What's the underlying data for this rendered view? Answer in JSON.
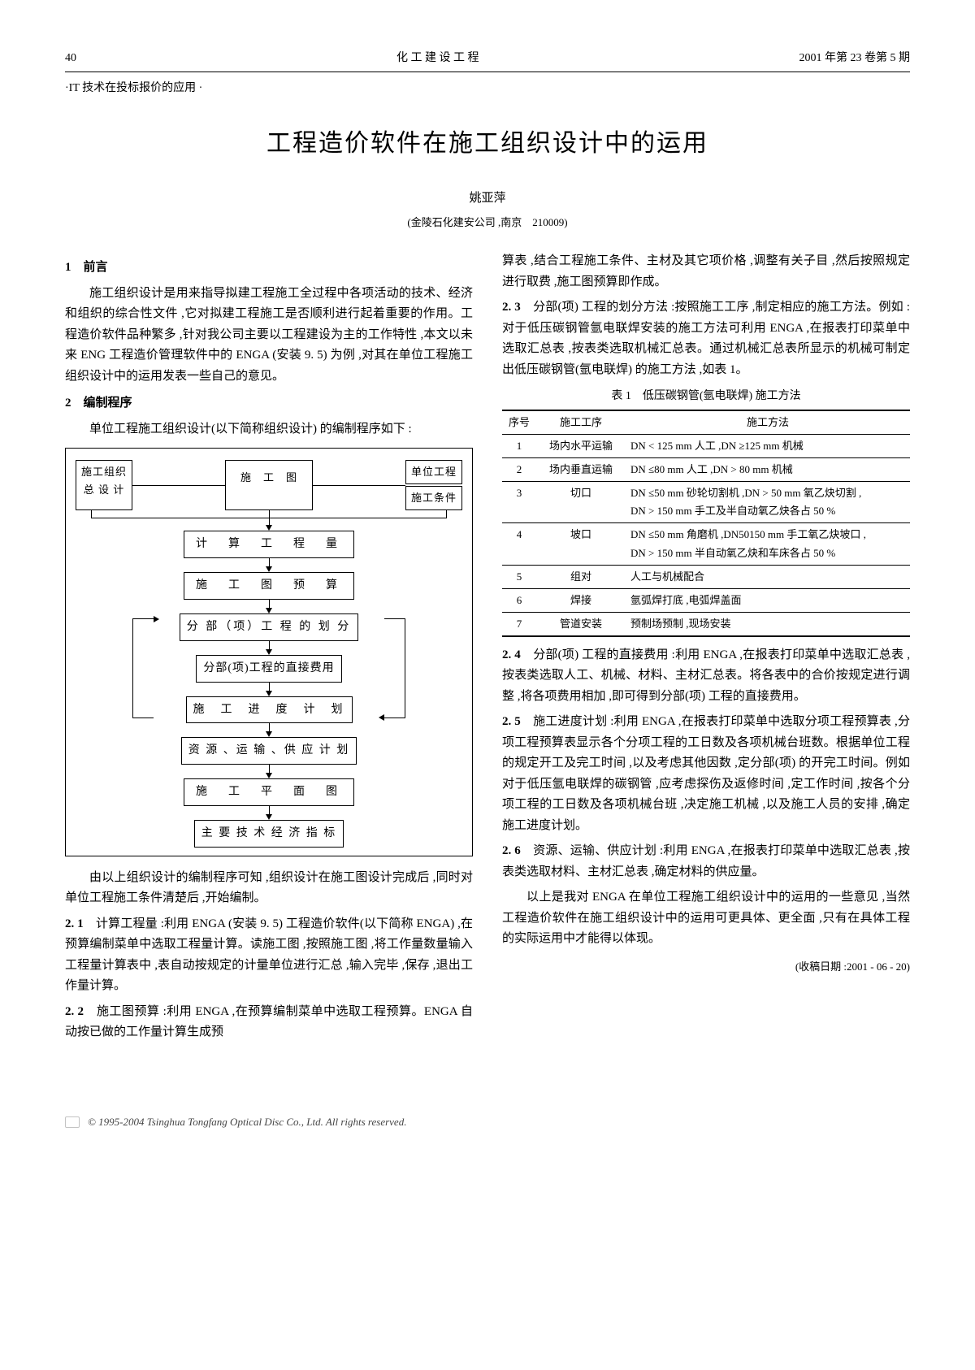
{
  "header": {
    "page_num": "40",
    "journal": "化 工 建 设 工 程",
    "issue": "2001 年第 23 卷第 5 期"
  },
  "section_tag": "·IT 技术在投标报价的应用 ·",
  "title": "工程造价软件在施工组织设计中的运用",
  "author": "姚亚萍",
  "affiliation": "(金陵石化建安公司 ,南京　210009)",
  "left": {
    "h1_num": "1",
    "h1": "前言",
    "p1": "施工组织设计是用来指导拟建工程施工全过程中各项活动的技术、经济和组织的综合性文件 ,它对拟建工程施工是否顺利进行起着重要的作用。工程造价软件品种繁多 ,针对我公司主要以工程建设为主的工作特性 ,本文以未来 ENG 工程造价管理软件中的 ENGA (安装 9. 5) 为例 ,对其在单位工程施工组织设计中的运用发表一些自己的意见。",
    "h2_num": "2",
    "h2": "编制程序",
    "p2": "单位工程施工组织设计(以下简称组织设计) 的编制程序如下 :",
    "p3": "由以上组织设计的编制程序可知 ,组织设计在施工图设计完成后 ,同时对单位工程施工条件清楚后 ,开始编制。",
    "s21_label": "2. 1",
    "s21": "计算工程量 :利用 ENGA (安装 9. 5) 工程造价软件(以下简称 ENGA) ,在预算编制菜单中选取工程量计算。读施工图 ,按照施工图 ,将工作量数量输入工程量计算表中 ,表自动按规定的计量单位进行汇总 ,输入完毕 ,保存 ,退出工作量计算。",
    "s22_label": "2. 2",
    "s22": "施工图预算 :利用 ENGA ,在预算编制菜单中选取工程预算。ENGA 自动按已做的工作量计算生成预"
  },
  "flowchart": {
    "top_left": "施工组织\n总 设 计",
    "top_mid": "施　工　图",
    "top_right1": "单位工程",
    "top_right2": "施工条件",
    "b1": "计　算　工　程　量",
    "b2": "施　工　图　预　算",
    "b3": "分 部（项）工 程 的 划 分",
    "b4": "分部(项)工程的直接费用",
    "b5": "施　工　进　度　计　划",
    "b6": "资 源 、运 输 、供 应 计 划",
    "b7": "施　工　平　面　图",
    "b8": "主 要 技 术 经 济 指 标"
  },
  "right": {
    "p_cont": "算表 ,结合工程施工条件、主材及其它项价格 ,调整有关子目 ,然后按照规定进行取费 ,施工图预算即作成。",
    "s23_label": "2. 3",
    "s23": "分部(项) 工程的划分方法 :按照施工工序 ,制定相应的施工方法。例如 :对于低压碳钢管氩电联焊安装的施工方法可利用 ENGA ,在报表打印菜单中选取汇总表 ,按表类选取机械汇总表。通过机械汇总表所显示的机械可制定出低压碳钢管(氩电联焊) 的施工方法 ,如表 1。",
    "s24_label": "2. 4",
    "s24": "分部(项) 工程的直接费用 :利用 ENGA ,在报表打印菜单中选取汇总表 ,按表类选取人工、机械、材料、主材汇总表。将各表中的合价按规定进行调整 ,将各项费用相加 ,即可得到分部(项) 工程的直接费用。",
    "s25_label": "2. 5",
    "s25": "施工进度计划 :利用 ENGA ,在报表打印菜单中选取分项工程预算表 ,分项工程预算表显示各个分项工程的工日数及各项机械台班数。根据单位工程的规定开工及完工时间 ,以及考虑其他因数 ,定分部(项) 的开完工时间。例如对于低压氩电联焊的碳钢管 ,应考虑探伤及返修时间 ,定工作时间 ,按各个分项工程的工日数及各项机械台班 ,决定施工机械 ,以及施工人员的安排 ,确定施工进度计划。",
    "s26_label": "2. 6",
    "s26": "资源、运输、供应计划 :利用 ENGA ,在报表打印菜单中选取汇总表 ,按表类选取材料、主材汇总表 ,确定材料的供应量。",
    "p_end": "以上是我对 ENGA 在单位工程施工组织设计中的运用的一些意见 ,当然工程造价软件在施工组织设计中的运用可更具体、更全面 ,只有在具体工程的实际运用中才能得以体现。",
    "receipt": "(收稿日期 :2001 - 06 - 20)"
  },
  "table": {
    "caption": "表 1　低压碳钢管(氩电联焊) 施工方法",
    "columns": [
      "序号",
      "施工工序",
      "施工方法"
    ],
    "rows": [
      [
        "1",
        "场内水平运输",
        "DN < 125 mm 人工 ,DN ≥125 mm 机械"
      ],
      [
        "2",
        "场内垂直运输",
        "DN ≤80 mm 人工 ,DN > 80 mm 机械"
      ],
      [
        "3",
        "切口",
        "DN ≤50 mm 砂轮切割机 ,DN > 50 mm 氧乙炔切割 ,\nDN > 150 mm 手工及半自动氧乙炔各占 50 %"
      ],
      [
        "4",
        "坡口",
        "DN ≤50 mm 角磨机 ,DN50150 mm 手工氧乙炔坡口 ,\nDN > 150 mm 半自动氧乙炔和车床各占 50 %"
      ],
      [
        "5",
        "组对",
        "人工与机械配合"
      ],
      [
        "6",
        "焊接",
        "氩弧焊打底 ,电弧焊盖面"
      ],
      [
        "7",
        "管道安装",
        "预制场预制 ,现场安装"
      ]
    ]
  },
  "footer": "© 1995-2004 Tsinghua Tongfang Optical Disc Co., Ltd.   All rights reserved."
}
